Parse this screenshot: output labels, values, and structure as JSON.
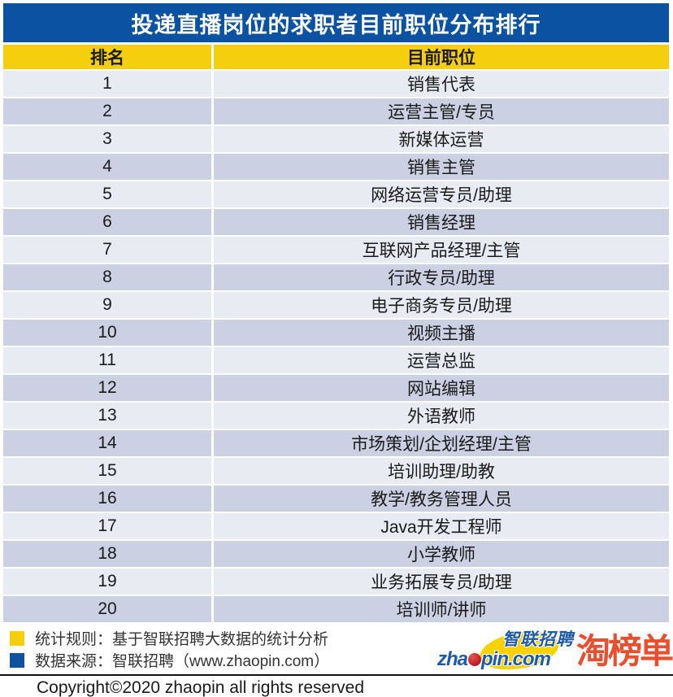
{
  "title": "投递直播岗位的求职者目前职位分布排行",
  "chart_data": {
    "type": "table",
    "title": "投递直播岗位的求职者目前职位分布排行",
    "columns": [
      "排名",
      "目前职位"
    ],
    "rows": [
      {
        "rank": "1",
        "position": "销售代表"
      },
      {
        "rank": "2",
        "position": "运营主管/专员"
      },
      {
        "rank": "3",
        "position": "新媒体运营"
      },
      {
        "rank": "4",
        "position": "销售主管"
      },
      {
        "rank": "5",
        "position": "网络运营专员/助理"
      },
      {
        "rank": "6",
        "position": "销售经理"
      },
      {
        "rank": "7",
        "position": "互联网产品经理/主管"
      },
      {
        "rank": "8",
        "position": "行政专员/助理"
      },
      {
        "rank": "9",
        "position": "电子商务专员/助理"
      },
      {
        "rank": "10",
        "position": "视频主播"
      },
      {
        "rank": "11",
        "position": "运营总监"
      },
      {
        "rank": "12",
        "position": "网站编辑"
      },
      {
        "rank": "13",
        "position": "外语教师"
      },
      {
        "rank": "14",
        "position": "市场策划/企划经理/主管"
      },
      {
        "rank": "15",
        "position": "培训助理/助教"
      },
      {
        "rank": "16",
        "position": "教学/教务管理人员"
      },
      {
        "rank": "17",
        "position": "Java开发工程师"
      },
      {
        "rank": "18",
        "position": "小学教师"
      },
      {
        "rank": "19",
        "position": "业务拓展专员/助理"
      },
      {
        "rank": "20",
        "position": "培训师/讲师"
      }
    ],
    "layout": {
      "header_position": "top",
      "striped": true,
      "legend_position": "bottom-left"
    }
  },
  "legend": {
    "items": [
      {
        "swatch": "yellow-square",
        "color": "#F5CF0E",
        "label": "统计规则：基于智联招聘大数据的统计分析"
      },
      {
        "swatch": "blue-square",
        "color": "#0E52A0",
        "label": "数据来源：智联招聘（www.zhaopin.com）"
      }
    ]
  },
  "logos": {
    "zhaopin": {
      "brand_cn": "智联招聘",
      "domain_prefix": "zha",
      "domain_suffix": "pin.com"
    },
    "taobangdan": "淘榜单"
  },
  "copyright": "Copyright©2020 zhaopin all rights reserved",
  "colors": {
    "title_bg": "#0B52A2",
    "header_bg": "#F5CF0E",
    "row_light": "#E9EBF3",
    "row_dark": "#CBD0E2",
    "zhaopin_blue": "#1E5AA8",
    "zhaopin_dot_red": "#C8242C",
    "zhaopin_ellipse_yellow": "#F8D100",
    "taobangdan_red": "#E94F2E"
  }
}
